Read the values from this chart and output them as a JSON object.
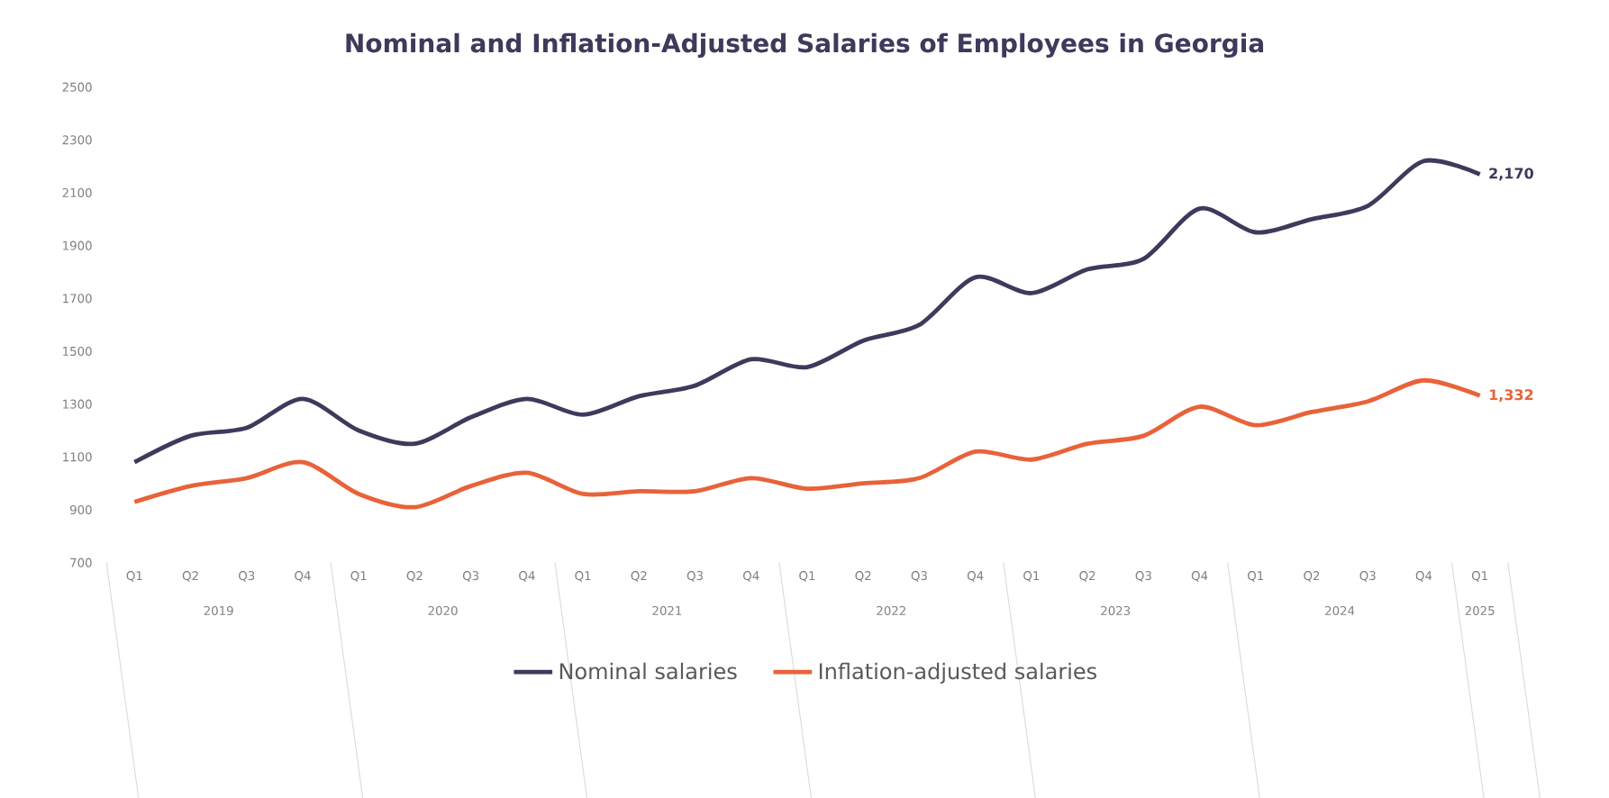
{
  "chart_data": {
    "type": "line",
    "title": "Nominal and Inflation-Adjusted Salaries of Employees in Georgia",
    "categories": [
      "Q1",
      "Q2",
      "Q3",
      "Q4",
      "Q1",
      "Q2",
      "Q3",
      "Q4",
      "Q1",
      "Q2",
      "Q3",
      "Q4",
      "Q1",
      "Q2",
      "Q3",
      "Q4",
      "Q1",
      "Q2",
      "Q3",
      "Q4",
      "Q1",
      "Q2",
      "Q3",
      "Q4",
      "Q1"
    ],
    "annotations": [
      "2019",
      "2020",
      "2021",
      "2022",
      "2023",
      "2024",
      "2025"
    ],
    "series": [
      {
        "name": "Nominal salaries",
        "color": "#3d3a5c",
        "values": [
          1080,
          1180,
          1210,
          1320,
          1200,
          1150,
          1250,
          1320,
          1260,
          1330,
          1370,
          1470,
          1440,
          1540,
          1600,
          1780,
          1720,
          1810,
          1850,
          2040,
          1950,
          2000,
          2050,
          2220,
          2170
        ],
        "value_labels": [
          null,
          null,
          null,
          null,
          null,
          null,
          null,
          null,
          null,
          null,
          null,
          null,
          null,
          null,
          null,
          null,
          null,
          null,
          null,
          null,
          null,
          null,
          null,
          null,
          "2,170"
        ]
      },
      {
        "name": "Inflation-adjusted salaries",
        "color": "#e8623a",
        "values": [
          930,
          990,
          1020,
          1080,
          960,
          910,
          990,
          1040,
          960,
          970,
          970,
          1020,
          980,
          1000,
          1020,
          1120,
          1090,
          1150,
          1180,
          1290,
          1220,
          1270,
          1310,
          1390,
          1332
        ],
        "value_labels": [
          null,
          null,
          null,
          null,
          null,
          null,
          null,
          null,
          null,
          null,
          null,
          null,
          null,
          null,
          null,
          null,
          null,
          null,
          null,
          null,
          null,
          null,
          null,
          null,
          "1,332"
        ]
      }
    ],
    "ylim": [
      700,
      2500
    ],
    "yticks": [
      700,
      900,
      1100,
      1300,
      1500,
      1700,
      1900,
      2100,
      2300,
      2500
    ],
    "grid": false,
    "legend": "bottom",
    "line_style": "solid",
    "marker": "none"
  }
}
